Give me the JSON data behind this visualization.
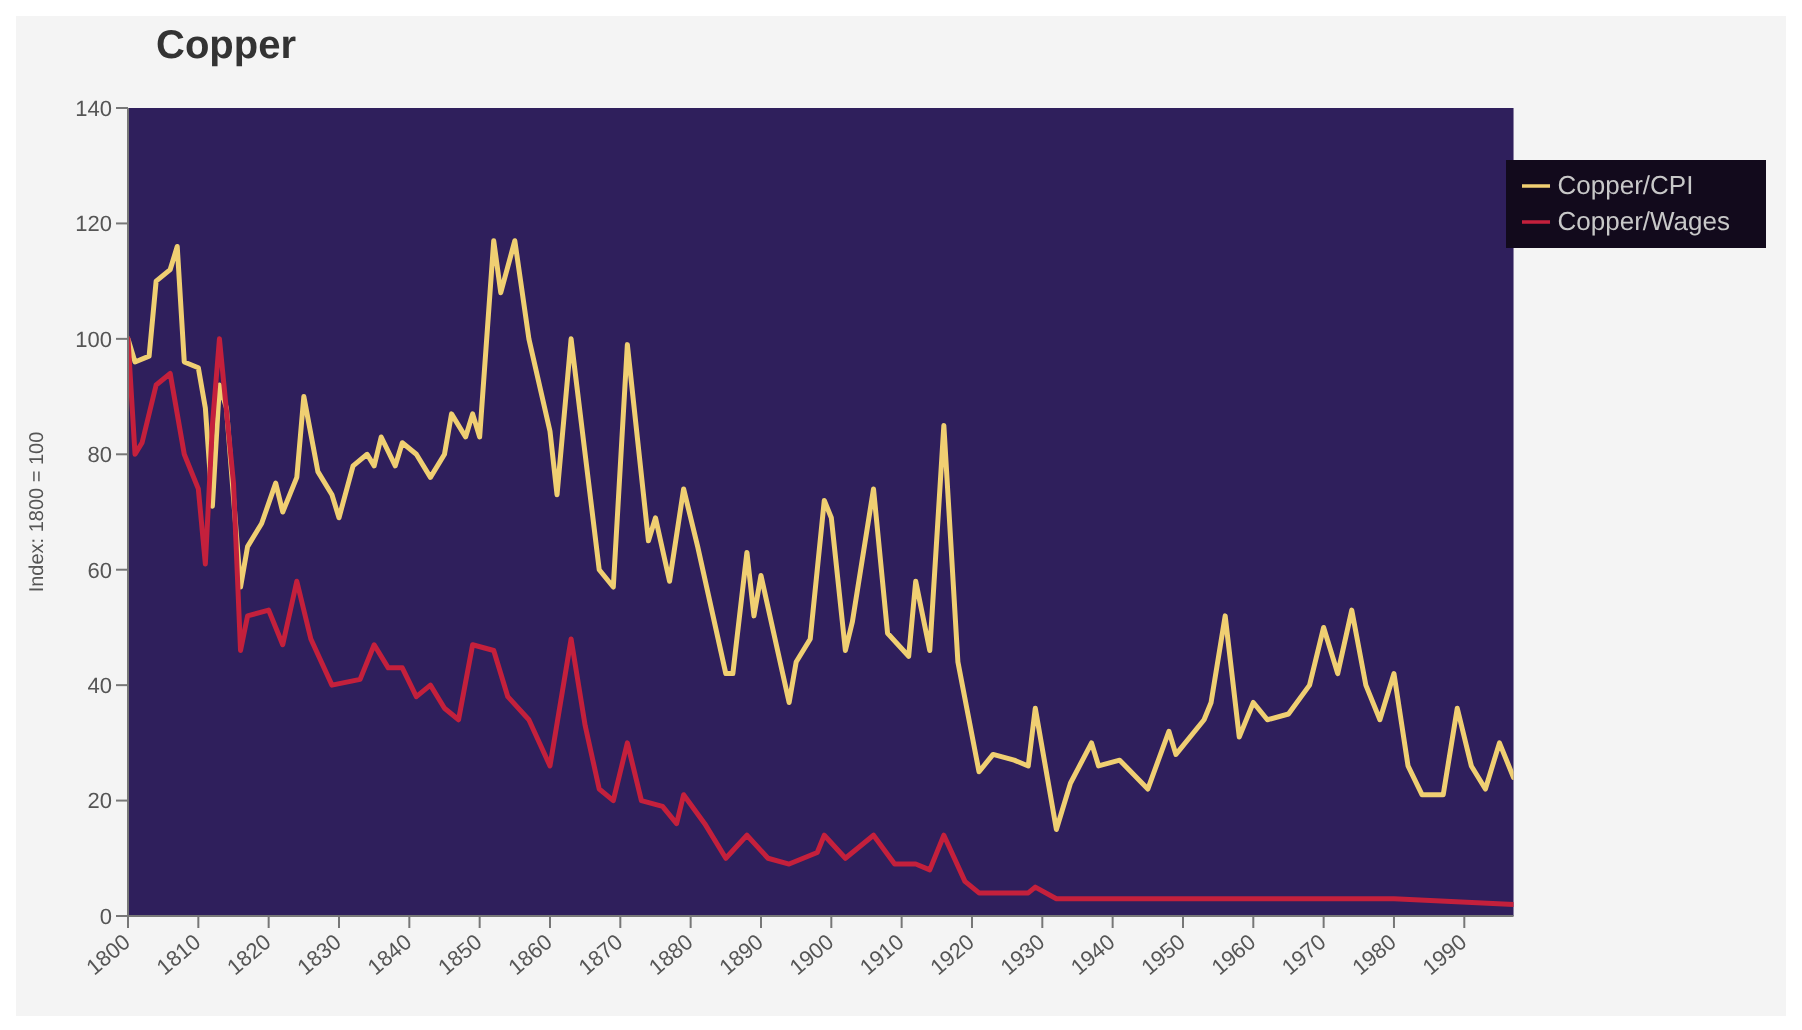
{
  "chart_data": {
    "type": "line",
    "title": "Copper",
    "ylabel": "Index: 1800 = 100",
    "xlim": [
      1800,
      1997
    ],
    "xticks": [
      1800,
      1810,
      1820,
      1830,
      1840,
      1850,
      1860,
      1870,
      1880,
      1890,
      1900,
      1910,
      1920,
      1930,
      1940,
      1950,
      1960,
      1970,
      1980,
      1990
    ],
    "ylim": [
      0,
      140
    ],
    "yticks": [
      0,
      20,
      40,
      60,
      80,
      100,
      120,
      140
    ],
    "grid": false,
    "legend": "top right",
    "marker": "none",
    "line_style": "solid",
    "series": [
      {
        "name": "Copper/CPI",
        "color": "#f0cf72",
        "x": [
          1800,
          1801,
          1803,
          1804,
          1806,
          1807,
          1808,
          1810,
          1811,
          1812,
          1813,
          1814,
          1816,
          1817,
          1819,
          1821,
          1822,
          1824,
          1825,
          1827,
          1829,
          1830,
          1832,
          1834,
          1835,
          1836,
          1838,
          1839,
          1841,
          1843,
          1845,
          1846,
          1848,
          1849,
          1850,
          1852,
          1853,
          1855,
          1857,
          1860,
          1861,
          1863,
          1865,
          1867,
          1869,
          1871,
          1874,
          1875,
          1877,
          1879,
          1881,
          1885,
          1886,
          1888,
          1889,
          1890,
          1894,
          1895,
          1897,
          1899,
          1900,
          1902,
          1903,
          1906,
          1908,
          1911,
          1912,
          1914,
          1916,
          1918,
          1921,
          1923,
          1926,
          1928,
          1929,
          1932,
          1934,
          1937,
          1938,
          1941,
          1945,
          1948,
          1949,
          1953,
          1954,
          1956,
          1958,
          1960,
          1962,
          1965,
          1968,
          1970,
          1972,
          1974,
          1976,
          1978,
          1980,
          1982,
          1984,
          1987,
          1989,
          1991,
          1993,
          1995,
          1997
        ],
        "values": [
          100,
          96,
          97,
          110,
          112,
          116,
          96,
          95,
          88,
          71,
          92,
          88,
          57,
          64,
          68,
          75,
          70,
          76,
          90,
          77,
          73,
          69,
          78,
          80,
          78,
          83,
          78,
          82,
          80,
          76,
          80,
          87,
          83,
          87,
          83,
          117,
          108,
          117,
          100,
          84,
          73,
          100,
          80,
          60,
          57,
          99,
          65,
          69,
          58,
          74,
          64,
          42,
          42,
          63,
          52,
          59,
          37,
          44,
          48,
          72,
          69,
          46,
          51,
          74,
          49,
          45,
          58,
          46,
          85,
          44,
          25,
          28,
          27,
          26,
          36,
          15,
          23,
          30,
          26,
          27,
          22,
          32,
          28,
          34,
          37,
          52,
          31,
          37,
          34,
          35,
          40,
          50,
          42,
          53,
          40,
          34,
          42,
          26,
          21,
          21,
          36,
          26,
          22,
          30,
          24
        ]
      },
      {
        "name": "Copper/Wages",
        "color": "#c4203c",
        "x": [
          1800,
          1801,
          1802,
          1804,
          1806,
          1808,
          1810,
          1811,
          1812,
          1813,
          1815,
          1816,
          1817,
          1820,
          1822,
          1824,
          1826,
          1829,
          1833,
          1835,
          1837,
          1839,
          1841,
          1843,
          1845,
          1847,
          1849,
          1852,
          1854,
          1857,
          1860,
          1863,
          1865,
          1867,
          1869,
          1871,
          1873,
          1876,
          1878,
          1879,
          1882,
          1885,
          1888,
          1891,
          1894,
          1898,
          1899,
          1902,
          1906,
          1909,
          1912,
          1914,
          1916,
          1919,
          1921,
          1928,
          1929,
          1932,
          1940,
          1960,
          1980,
          1997
        ],
        "values": [
          100,
          80,
          82,
          92,
          94,
          80,
          74,
          61,
          85,
          100,
          75,
          46,
          52,
          53,
          47,
          58,
          48,
          40,
          41,
          47,
          43,
          43,
          38,
          40,
          36,
          34,
          47,
          46,
          38,
          34,
          26,
          48,
          33,
          22,
          20,
          30,
          20,
          19,
          16,
          21,
          16,
          10,
          14,
          10,
          9,
          11,
          14,
          10,
          14,
          9,
          9,
          8,
          14,
          6,
          4,
          4,
          5,
          3,
          3,
          3,
          3,
          2
        ]
      }
    ]
  }
}
